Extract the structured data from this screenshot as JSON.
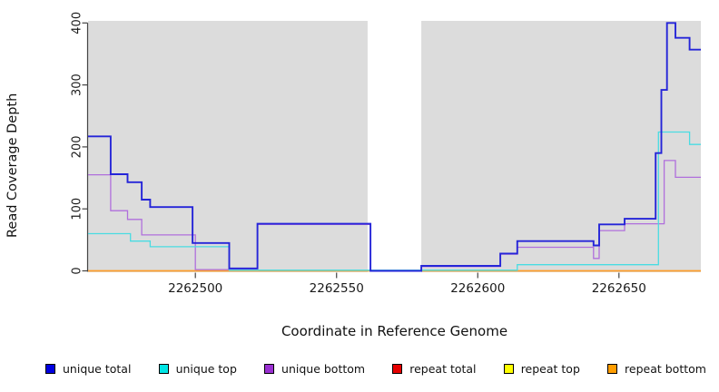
{
  "figure": {
    "y_axis_label": "Read Coverage Depth",
    "x_axis_label": "Coordinate in Reference Genome"
  },
  "chart_data": {
    "type": "line",
    "subtype": "step",
    "title": "",
    "xlabel": "Coordinate in Reference Genome",
    "ylabel": "Read Coverage Depth",
    "xlim": [
      2262462,
      2262679
    ],
    "ylim": [
      0,
      405
    ],
    "x_ticks": [
      2262500,
      2262550,
      2262600,
      2262650
    ],
    "y_ticks": [
      0,
      100,
      200,
      300,
      400
    ],
    "grid": false,
    "plot_bg_color": "#dcdcdc",
    "axis_color": "#444444",
    "tick_label_color": "#1a1a1a",
    "gap_region": {
      "x1": 2262561,
      "x2": 2262580,
      "color": "#ffffff"
    },
    "blend_segment": {
      "x1": 2262512,
      "x2": 2262614,
      "y": 0.8,
      "color": "#8dd08d",
      "note": "light-green line where unique-top overlaps repeat lines at zero"
    },
    "series": [
      {
        "name": "repeat total",
        "color": "#e60000",
        "width": 1.2,
        "points": [
          [
            2262462,
            0
          ]
        ]
      },
      {
        "name": "repeat top",
        "color": "#ffff00",
        "width": 1.2,
        "points": [
          [
            2262462,
            0
          ]
        ]
      },
      {
        "name": "repeat bottom",
        "color": "#ff9d2b",
        "width": 1.5,
        "points": [
          [
            2262462,
            0
          ]
        ]
      },
      {
        "name": "unique bottom",
        "color": "#b06fdc",
        "width": 1.3,
        "points": [
          [
            2262462,
            155
          ],
          [
            2262470,
            97
          ],
          [
            2262476,
            83
          ],
          [
            2262481,
            58
          ],
          [
            2262500,
            2
          ],
          [
            2262512,
            3
          ],
          [
            2262522,
            75
          ],
          [
            2262562,
            0
          ],
          [
            2262580,
            7
          ],
          [
            2262608,
            27
          ],
          [
            2262614,
            38
          ],
          [
            2262641,
            20
          ],
          [
            2262643,
            65
          ],
          [
            2262652,
            76
          ],
          [
            2262666,
            178
          ],
          [
            2262670,
            151
          ]
        ]
      },
      {
        "name": "unique top",
        "color": "#49dce2",
        "width": 1.3,
        "points": [
          [
            2262462,
            60
          ],
          [
            2262477,
            48
          ],
          [
            2262484,
            39
          ],
          [
            2262512,
            1
          ],
          [
            2262614,
            10
          ],
          [
            2262664,
            224
          ],
          [
            2262675,
            204
          ]
        ]
      },
      {
        "name": "unique total",
        "color": "#2525d8",
        "width": 1.9,
        "points": [
          [
            2262462,
            217
          ],
          [
            2262470,
            156
          ],
          [
            2262476,
            143
          ],
          [
            2262481,
            115
          ],
          [
            2262484,
            103
          ],
          [
            2262499,
            45
          ],
          [
            2262512,
            4
          ],
          [
            2262522,
            76
          ],
          [
            2262562,
            0
          ],
          [
            2262580,
            8
          ],
          [
            2262608,
            28
          ],
          [
            2262614,
            48
          ],
          [
            2262641,
            41
          ],
          [
            2262643,
            75
          ],
          [
            2262652,
            84
          ],
          [
            2262663,
            190
          ],
          [
            2262665,
            292
          ],
          [
            2262667,
            400
          ],
          [
            2262670,
            376
          ],
          [
            2262675,
            357
          ]
        ]
      }
    ],
    "legend_position": "bottom",
    "legend": [
      {
        "label": "unique total",
        "color": "#0000e0"
      },
      {
        "label": "unique top",
        "color": "#00e6e6"
      },
      {
        "label": "unique bottom",
        "color": "#9a30d2"
      },
      {
        "label": "repeat total",
        "color": "#e60000"
      },
      {
        "label": "repeat top",
        "color": "#ffff00"
      },
      {
        "label": "repeat bottom",
        "color": "#ff9d00"
      }
    ]
  }
}
